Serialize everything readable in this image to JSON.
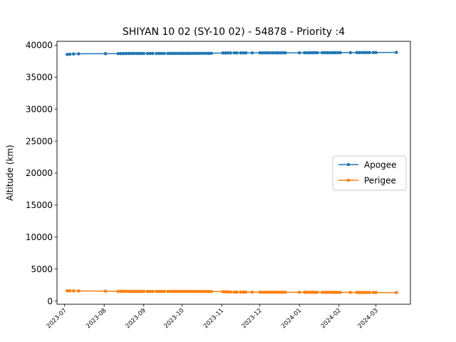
{
  "chart_data": {
    "type": "line",
    "title": "SHIYAN 10 02 (SY-10 02) - 54878 - Priority :4",
    "xlabel": "",
    "ylabel": "Altitude (km)",
    "ylim": [
      -500,
      40600
    ],
    "xlim": [
      "2023-06-25",
      "2024-03-28"
    ],
    "x_ticks": [
      "2023-07",
      "2023-08",
      "2023-09",
      "2023-10",
      "2023-11",
      "2023-12",
      "2024-01",
      "2024-02",
      "2024-03"
    ],
    "y_ticks": [
      0,
      5000,
      10000,
      15000,
      20000,
      25000,
      30000,
      35000,
      40000
    ],
    "y_tick_labels": [
      "0",
      "5000",
      "10000",
      "15000",
      "20000",
      "25000",
      "30000",
      "35000",
      "40000"
    ],
    "grid": false,
    "legend_position": "center-right",
    "x": [
      "2023-07-03",
      "2023-07-05",
      "2023-07-08",
      "2023-07-12",
      "2023-08-02",
      "2023-08-12",
      "2023-08-14",
      "2023-08-16",
      "2023-08-18",
      "2023-08-20",
      "2023-08-22",
      "2023-08-24",
      "2023-08-26",
      "2023-08-28",
      "2023-08-30",
      "2023-09-01",
      "2023-09-04",
      "2023-09-06",
      "2023-09-08",
      "2023-09-11",
      "2023-09-13",
      "2023-09-15",
      "2023-09-17",
      "2023-09-20",
      "2023-09-22",
      "2023-09-24",
      "2023-09-26",
      "2023-09-28",
      "2023-09-30",
      "2023-10-02",
      "2023-10-04",
      "2023-10-06",
      "2023-10-08",
      "2023-10-10",
      "2023-10-12",
      "2023-10-14",
      "2023-10-16",
      "2023-10-18",
      "2023-10-20",
      "2023-10-22",
      "2023-10-24",
      "2023-11-02",
      "2023-11-04",
      "2023-11-06",
      "2023-11-08",
      "2023-11-11",
      "2023-11-13",
      "2023-11-16",
      "2023-11-18",
      "2023-11-20",
      "2023-11-25",
      "2023-12-01",
      "2023-12-03",
      "2023-12-05",
      "2023-12-07",
      "2023-12-09",
      "2023-12-11",
      "2023-12-13",
      "2023-12-15",
      "2023-12-17",
      "2023-12-19",
      "2023-12-21",
      "2024-01-01",
      "2024-01-05",
      "2024-01-07",
      "2024-01-09",
      "2024-01-11",
      "2024-01-13",
      "2024-01-15",
      "2024-01-19",
      "2024-01-21",
      "2024-01-23",
      "2024-01-25",
      "2024-01-27",
      "2024-01-29",
      "2024-01-31",
      "2024-02-02",
      "2024-02-10",
      "2024-02-15",
      "2024-02-17",
      "2024-02-19",
      "2024-02-21",
      "2024-02-23",
      "2024-02-25",
      "2024-02-28",
      "2024-03-01",
      "2024-03-17"
    ],
    "series": [
      {
        "name": "Apogee",
        "color": "#1f77b4",
        "marker": "circle",
        "values": [
          38550,
          38580,
          38620,
          38650,
          38670,
          38680,
          38680,
          38690,
          38690,
          38700,
          38700,
          38700,
          38700,
          38700,
          38700,
          38700,
          38700,
          38700,
          38700,
          38700,
          38700,
          38700,
          38700,
          38710,
          38710,
          38710,
          38710,
          38710,
          38710,
          38710,
          38710,
          38710,
          38710,
          38720,
          38720,
          38720,
          38720,
          38720,
          38720,
          38720,
          38730,
          38780,
          38780,
          38780,
          38790,
          38790,
          38790,
          38790,
          38790,
          38790,
          38790,
          38800,
          38800,
          38800,
          38800,
          38800,
          38800,
          38800,
          38800,
          38800,
          38800,
          38810,
          38810,
          38810,
          38810,
          38820,
          38820,
          38820,
          38820,
          38820,
          38820,
          38820,
          38820,
          38820,
          38820,
          38820,
          38830,
          38830,
          38840,
          38840,
          38840,
          38840,
          38840,
          38840,
          38840,
          38850,
          38870
        ]
      },
      {
        "name": "Perigee",
        "color": "#ff7f0e",
        "marker": "circle",
        "values": [
          1600,
          1600,
          1590,
          1580,
          1540,
          1520,
          1520,
          1520,
          1520,
          1510,
          1510,
          1510,
          1510,
          1510,
          1510,
          1510,
          1500,
          1500,
          1500,
          1500,
          1500,
          1500,
          1500,
          1500,
          1500,
          1500,
          1500,
          1500,
          1500,
          1500,
          1500,
          1500,
          1500,
          1500,
          1500,
          1500,
          1500,
          1490,
          1490,
          1490,
          1490,
          1460,
          1440,
          1420,
          1410,
          1400,
          1400,
          1400,
          1400,
          1400,
          1390,
          1390,
          1380,
          1380,
          1380,
          1380,
          1380,
          1380,
          1380,
          1380,
          1380,
          1380,
          1370,
          1370,
          1370,
          1370,
          1370,
          1360,
          1360,
          1360,
          1360,
          1360,
          1360,
          1360,
          1350,
          1350,
          1350,
          1350,
          1340,
          1340,
          1340,
          1340,
          1340,
          1340,
          1340,
          1330,
          1320
        ]
      }
    ]
  }
}
